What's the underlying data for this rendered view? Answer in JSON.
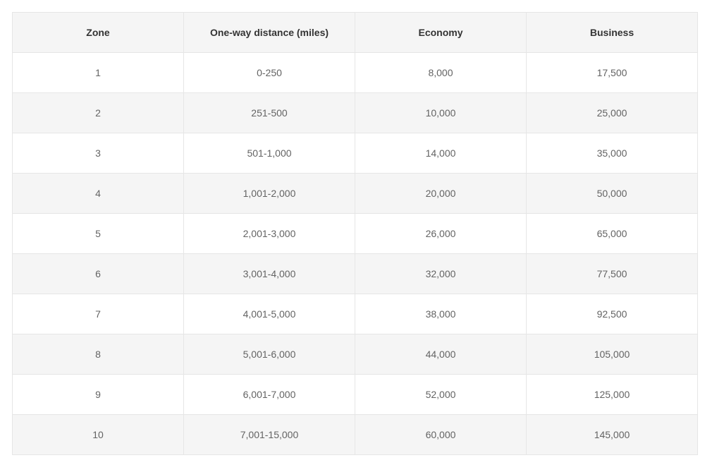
{
  "colors": {
    "header_bg": "#f5f5f5",
    "row_bg_white": "#ffffff",
    "row_bg_alt": "#f5f5f5",
    "border": "#e6e6e6",
    "header_text": "#333333",
    "cell_text": "#636363"
  },
  "table": {
    "columns": [
      "Zone",
      "One-way distance (miles)",
      "Economy",
      "Business"
    ],
    "rows": [
      [
        "1",
        "0-250",
        "8,000",
        "17,500"
      ],
      [
        "2",
        "251-500",
        "10,000",
        "25,000"
      ],
      [
        "3",
        "501-1,000",
        "14,000",
        "35,000"
      ],
      [
        "4",
        "1,001-2,000",
        "20,000",
        "50,000"
      ],
      [
        "5",
        "2,001-3,000",
        "26,000",
        "65,000"
      ],
      [
        "6",
        "3,001-4,000",
        "32,000",
        "77,500"
      ],
      [
        "7",
        "4,001-5,000",
        "38,000",
        "92,500"
      ],
      [
        "8",
        "5,001-6,000",
        "44,000",
        "105,000"
      ],
      [
        "9",
        "6,001-7,000",
        "52,000",
        "125,000"
      ],
      [
        "10",
        "7,001-15,000",
        "60,000",
        "145,000"
      ]
    ]
  }
}
